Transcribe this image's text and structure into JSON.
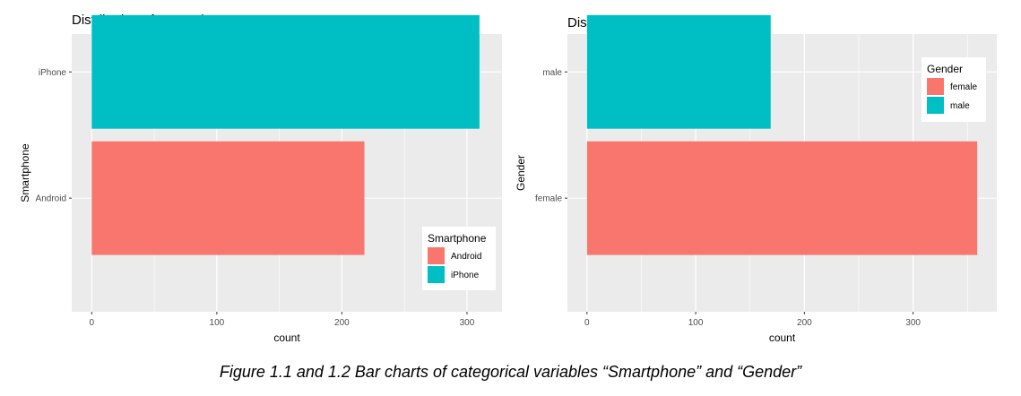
{
  "chart_data": [
    {
      "type": "bar",
      "orientation": "horizontal",
      "title": "Distribution of Smartphone",
      "xlabel": "count",
      "ylabel": "Smartphone",
      "categories": [
        "Android",
        "iPhone"
      ],
      "values": [
        218,
        310
      ],
      "xlim": [
        -16,
        328
      ],
      "xticks": [
        "0",
        "100",
        "200",
        "300"
      ],
      "grid": true,
      "legend": {
        "title": "Smartphone",
        "position": "bottom-right",
        "entries": [
          {
            "label": "Android",
            "color": "#F8766D"
          },
          {
            "label": "iPhone",
            "color": "#00BFC4"
          }
        ]
      }
    },
    {
      "type": "bar",
      "orientation": "horizontal",
      "title": "Distribution of Gender",
      "xlabel": "count",
      "ylabel": "Gender",
      "categories": [
        "female",
        "male"
      ],
      "values": [
        359,
        169
      ],
      "xlim": [
        -18,
        377
      ],
      "xticks": [
        "0",
        "100",
        "200",
        "300"
      ],
      "grid": true,
      "legend": {
        "title": "Gender",
        "position": "top-right",
        "entries": [
          {
            "label": "female",
            "color": "#F8766D"
          },
          {
            "label": "male",
            "color": "#00BFC4"
          }
        ]
      }
    }
  ],
  "caption": "Figure 1.1 and 1.2 Bar charts of categorical variables “Smartphone” and “Gender”",
  "colors": {
    "panel_background": "#EBEBEB",
    "grid": "#FFFFFF",
    "female_android": "#F8766D",
    "male_iphone": "#00BFC4"
  }
}
